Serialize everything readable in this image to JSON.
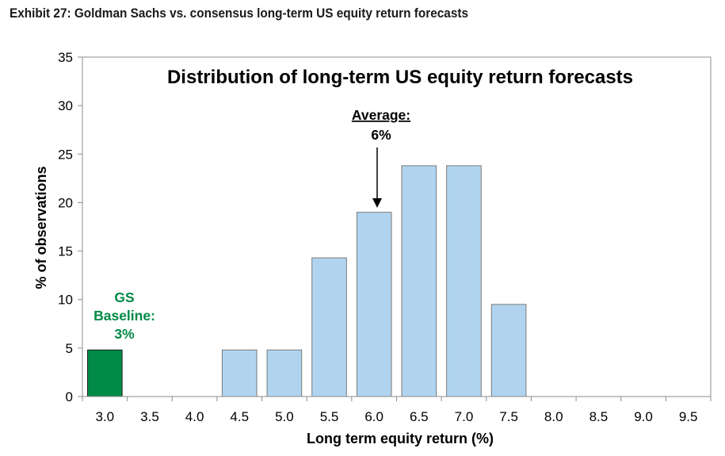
{
  "header": {
    "exhibit_title": "Exhibit 27: Goldman Sachs vs. consensus long-term US equity return forecasts"
  },
  "chart_data": {
    "type": "bar",
    "title": "Distribution of long-term US equity return forecasts",
    "xlabel": "Long term equity return (%)",
    "ylabel": "% of observations",
    "categories": [
      "3.0",
      "3.5",
      "4.0",
      "4.5",
      "5.0",
      "5.5",
      "6.0",
      "6.5",
      "7.0",
      "7.5",
      "8.0",
      "8.5",
      "9.0",
      "9.5"
    ],
    "values": [
      4.8,
      0,
      0,
      4.8,
      4.8,
      14.3,
      19.0,
      23.8,
      23.8,
      9.5,
      0,
      0,
      0,
      0
    ],
    "ylim": [
      0,
      35
    ],
    "yticks": [
      0,
      5,
      10,
      15,
      20,
      25,
      30,
      35
    ],
    "highlight_index": 0,
    "colors": {
      "bar": "#b0d4ef",
      "bar_stroke": "#7a7a7a",
      "highlight": "#008a47",
      "annotation": "#008a47"
    },
    "annotations": {
      "average_title": "Average:",
      "average_value": "6%",
      "gs_line1": "GS",
      "gs_line2": "Baseline:",
      "gs_line3": "3%"
    },
    "grid": false,
    "legend": "none"
  }
}
